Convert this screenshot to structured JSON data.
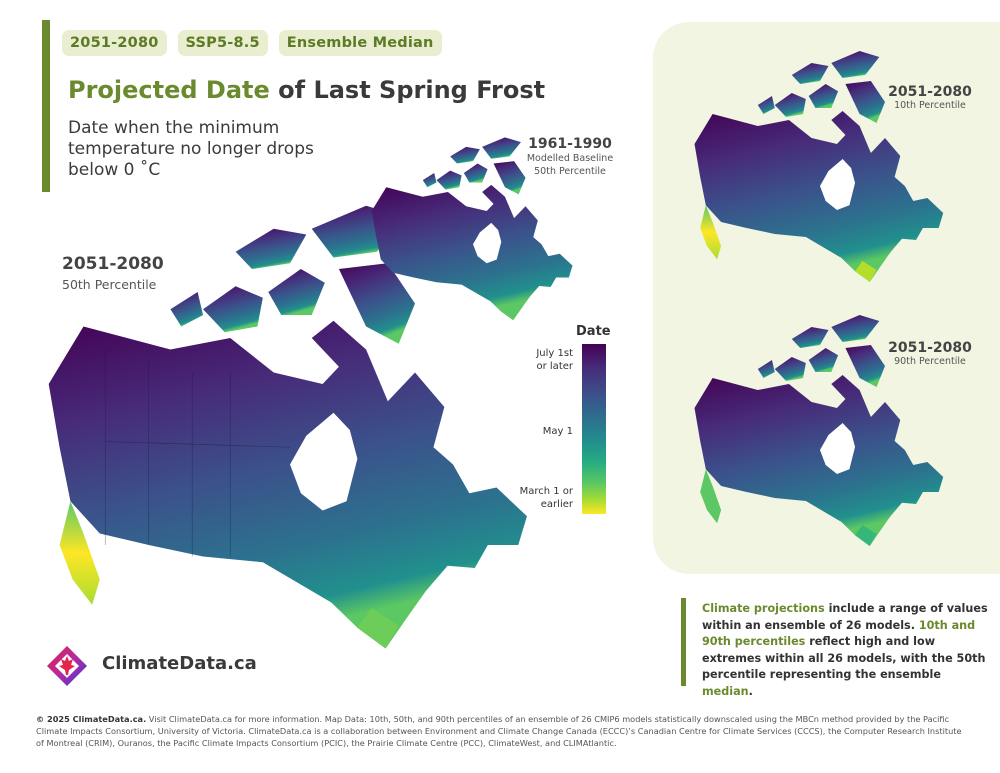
{
  "tags": [
    "2051-2080",
    "SSP5-8.5",
    "Ensemble Median"
  ],
  "title": {
    "highlight": "Projected Date",
    "rest": " of Last Spring Frost"
  },
  "subtitle": "Date when the minimum temperature no longer drops below 0 ˚C",
  "main_map": {
    "period": "2051-2080",
    "percentile": "50th Percentile"
  },
  "baseline_map": {
    "period": "1961-1990",
    "line1": "Modelled Baseline",
    "line2": "50th Percentile"
  },
  "p10_map": {
    "period": "2051-2080",
    "percentile": "10th Percentile"
  },
  "p90_map": {
    "period": "2051-2080",
    "percentile": "90th Percentile"
  },
  "legend": {
    "title": "Date",
    "top": [
      "July 1st",
      "or later"
    ],
    "middle": "May 1",
    "bottom": [
      "March 1 or",
      "earlier"
    ],
    "colors": [
      "#440154",
      "#3b518b",
      "#21908d",
      "#5cc863",
      "#fde725"
    ]
  },
  "note": {
    "s1": "Climate projections",
    "s2": " include a range of values within an ensemble of 26 models. ",
    "s3": "10th and 90th percentiles",
    "s4": " reflect high and low extremes within all 26 models, with the 50th percentile representing the ensemble ",
    "s5": "median",
    "s6": "."
  },
  "logo": {
    "text": "ClimateData.ca"
  },
  "footer": {
    "bold": "© 2025 ClimateData.ca.",
    "text": " Visit ClimateData.ca for more information. Map Data: 10th, 50th, and 90th percentiles of an ensemble of 26 CMIP6 models statistically downscaled using the MBCn method provided by the Pacific Climate Impacts Consortium, University of Victoria. ClimateData.ca is a collaboration between Environment and Climate Change Canada (ECCC)’s Canadian Centre for Climate Services (CCCS), the Computer Research Institute of Montreal (CRIM), Ouranos, the Pacific Climate Impacts Consortium (PCIC), the Prairie Climate Centre (PCC), ClimateWest, and CLIMAtlantic."
  },
  "colors": {
    "accent": "#6a8a2d",
    "panel": "#f2f5e1",
    "tag_bg": "#e8eecf"
  }
}
